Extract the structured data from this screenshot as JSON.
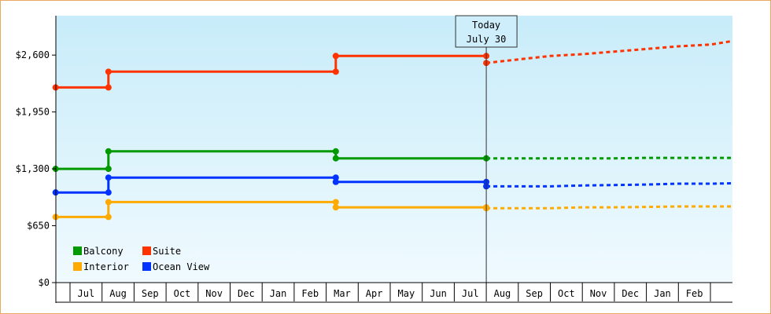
{
  "chart_data": {
    "type": "line",
    "y_ticks": [
      {
        "value": 0,
        "label": "$0"
      },
      {
        "value": 650,
        "label": "$650"
      },
      {
        "value": 1300,
        "label": "$1,300"
      },
      {
        "value": 1950,
        "label": "$1,950"
      },
      {
        "value": 2600,
        "label": "$2,600"
      }
    ],
    "ylim": [
      0,
      3050
    ],
    "x_months": [
      "Jul",
      "Aug",
      "Sep",
      "Oct",
      "Nov",
      "Dec",
      "Jan",
      "Feb",
      "Mar",
      "Apr",
      "May",
      "Jun",
      "Jul",
      "Aug",
      "Sep",
      "Oct",
      "Nov",
      "Dec",
      "Jan",
      "Feb"
    ],
    "today": {
      "line1": "Today",
      "line2": "July 30",
      "month_index": 13.0
    },
    "series": [
      {
        "name": "Suite",
        "color": "#ff3300",
        "history": [
          [
            -0.45,
            2230
          ],
          [
            1.2,
            2230
          ],
          [
            1.2,
            2410
          ],
          [
            8.3,
            2410
          ],
          [
            8.3,
            2590
          ],
          [
            13.0,
            2590
          ]
        ],
        "forecast": [
          [
            13.0,
            2510
          ],
          [
            14.0,
            2550
          ],
          [
            15.0,
            2590
          ],
          [
            16.0,
            2610
          ],
          [
            17.0,
            2640
          ],
          [
            18.0,
            2670
          ],
          [
            19.0,
            2700
          ],
          [
            20.0,
            2720
          ],
          [
            21.2,
            2760
          ]
        ]
      },
      {
        "name": "Balcony",
        "color": "#009900",
        "history": [
          [
            -0.45,
            1300
          ],
          [
            1.2,
            1300
          ],
          [
            1.2,
            1500
          ],
          [
            8.3,
            1500
          ],
          [
            8.3,
            1420
          ],
          [
            13.0,
            1420
          ]
        ],
        "forecast": [
          [
            13.0,
            1420
          ],
          [
            14.0,
            1420
          ],
          [
            15.0,
            1420
          ],
          [
            16.0,
            1420
          ],
          [
            17.0,
            1420
          ],
          [
            18.0,
            1425
          ],
          [
            19.0,
            1425
          ],
          [
            20.0,
            1425
          ],
          [
            21.2,
            1425
          ]
        ]
      },
      {
        "name": "Ocean View",
        "color": "#0033ff",
        "history": [
          [
            -0.45,
            1030
          ],
          [
            1.2,
            1030
          ],
          [
            1.2,
            1200
          ],
          [
            8.3,
            1200
          ],
          [
            8.3,
            1150
          ],
          [
            13.0,
            1150
          ]
        ],
        "forecast": [
          [
            13.0,
            1100
          ],
          [
            14.0,
            1100
          ],
          [
            15.0,
            1100
          ],
          [
            16.0,
            1110
          ],
          [
            17.0,
            1115
          ],
          [
            18.0,
            1120
          ],
          [
            19.0,
            1130
          ],
          [
            20.0,
            1130
          ],
          [
            21.2,
            1135
          ]
        ]
      },
      {
        "name": "Interior",
        "color": "#ffaa00",
        "history": [
          [
            -0.45,
            750
          ],
          [
            1.2,
            750
          ],
          [
            1.2,
            920
          ],
          [
            8.3,
            920
          ],
          [
            8.3,
            860
          ],
          [
            13.0,
            860
          ]
        ],
        "forecast": [
          [
            13.0,
            850
          ],
          [
            14.0,
            850
          ],
          [
            15.0,
            850
          ],
          [
            16.0,
            860
          ],
          [
            17.0,
            860
          ],
          [
            18.0,
            865
          ],
          [
            19.0,
            870
          ],
          [
            20.0,
            870
          ],
          [
            21.2,
            870
          ]
        ]
      }
    ],
    "legend": {
      "placement": "bottom-left",
      "items": [
        {
          "label": "Balcony",
          "color": "#009900"
        },
        {
          "label": "Suite",
          "color": "#ff3300"
        },
        {
          "label": "Interior",
          "color": "#ffaa00"
        },
        {
          "label": "Ocean View",
          "color": "#0033ff"
        }
      ]
    },
    "grid": false
  }
}
